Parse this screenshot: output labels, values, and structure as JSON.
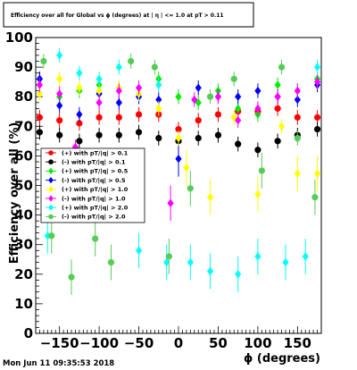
{
  "chart_data": {
    "type": "scatter",
    "title": "Efficiency over all for Global vs ϕ (degrees) at | η | <= 1.0 at pT > 0.11",
    "xlabel": "ϕ (degrees)",
    "ylabel": "Efficiency over all (%)",
    "xlim": [
      -180,
      180
    ],
    "ylim": [
      0,
      100
    ],
    "x_ticks": [
      -150,
      -100,
      -50,
      0,
      50,
      100,
      150
    ],
    "y_ticks": [
      0,
      10,
      20,
      30,
      40,
      50,
      60,
      70,
      80,
      90,
      100
    ],
    "x_tick_labels": [
      "−150",
      "−100",
      "−50",
      "0",
      "50",
      "100",
      "150"
    ],
    "y_tick_labels": [
      "0",
      "10",
      "20",
      "30",
      "40",
      "50",
      "60",
      "70",
      "80",
      "90",
      "100"
    ],
    "grid": false,
    "legend_position": "left-middle",
    "timestamp": "Mon Jun 11 09:35:53 2018",
    "series": [
      {
        "name": "(+) with pT/|q| > 0.1",
        "color": "#ff0000",
        "marker": "circle",
        "points": [
          [
            -175,
            73
          ],
          [
            -150,
            72
          ],
          [
            -125,
            71
          ],
          [
            -100,
            73
          ],
          [
            -75,
            73
          ],
          [
            -50,
            74
          ],
          [
            -25,
            74
          ],
          [
            0,
            69
          ],
          [
            25,
            72
          ],
          [
            50,
            74
          ],
          [
            75,
            75
          ],
          [
            100,
            75
          ],
          [
            125,
            76
          ],
          [
            150,
            73
          ],
          [
            175,
            73
          ]
        ]
      },
      {
        "name": "(-) with pT/|q| > 0.1",
        "color": "#000000",
        "marker": "circle",
        "points": [
          [
            -175,
            68
          ],
          [
            -150,
            67
          ],
          [
            -125,
            65
          ],
          [
            -100,
            67
          ],
          [
            -75,
            67
          ],
          [
            -50,
            68
          ],
          [
            -25,
            66
          ],
          [
            0,
            65
          ],
          [
            25,
            66
          ],
          [
            50,
            67
          ],
          [
            75,
            64
          ],
          [
            100,
            62
          ],
          [
            125,
            65
          ],
          [
            150,
            67
          ],
          [
            175,
            69
          ]
        ]
      },
      {
        "name": "(+) with pT/|q| > 0.5",
        "color": "#00ee00",
        "marker": "diamond",
        "points": [
          [
            -175,
            86
          ],
          [
            -150,
            80
          ],
          [
            -125,
            82
          ],
          [
            -100,
            84
          ],
          [
            -75,
            83
          ],
          [
            -50,
            80
          ],
          [
            -25,
            86
          ],
          [
            0,
            80
          ],
          [
            25,
            78
          ],
          [
            50,
            82
          ],
          [
            75,
            76
          ],
          [
            100,
            74
          ],
          [
            125,
            84
          ],
          [
            150,
            82
          ],
          [
            175,
            86
          ]
        ]
      },
      {
        "name": "(-) with pT/|q| > 0.5",
        "color": "#0000ff",
        "marker": "diamond",
        "points": [
          [
            -175,
            86
          ],
          [
            -150,
            77
          ],
          [
            -125,
            74
          ],
          [
            -100,
            81
          ],
          [
            -75,
            78
          ],
          [
            -50,
            80
          ],
          [
            -25,
            79
          ],
          [
            0,
            59
          ],
          [
            25,
            83
          ],
          [
            50,
            80
          ],
          [
            75,
            80
          ],
          [
            100,
            82
          ],
          [
            125,
            80
          ],
          [
            150,
            79
          ],
          [
            175,
            84
          ]
        ]
      },
      {
        "name": "(+) with pT/|q| > 1.0",
        "color": "#ffff00",
        "marker": "diamond",
        "points": [
          [
            -175,
            81
          ],
          [
            -150,
            86
          ],
          [
            -125,
            83
          ],
          [
            -100,
            82
          ],
          [
            -75,
            83
          ],
          [
            -50,
            81
          ],
          [
            -25,
            76
          ],
          [
            0,
            66
          ],
          [
            10,
            56
          ],
          [
            40,
            46
          ],
          [
            70,
            73
          ],
          [
            100,
            47
          ],
          [
            130,
            70
          ],
          [
            150,
            54
          ],
          [
            175,
            54
          ]
        ]
      },
      {
        "name": "(-) with pT/|q| > 1.0",
        "color": "#ff00ff",
        "marker": "diamond",
        "points": [
          [
            -175,
            84
          ],
          [
            -150,
            81
          ],
          [
            -130,
            63
          ],
          [
            -100,
            78
          ],
          [
            -75,
            82
          ],
          [
            -50,
            83
          ],
          [
            -10,
            44
          ],
          [
            20,
            79
          ],
          [
            50,
            80
          ],
          [
            75,
            72
          ],
          [
            100,
            76
          ],
          [
            125,
            80
          ],
          [
            150,
            82
          ],
          [
            175,
            85
          ]
        ]
      },
      {
        "name": "(+) with pT/|q| > 2.0",
        "color": "#00ffff",
        "marker": "diamond",
        "points": [
          [
            -165,
            33
          ],
          [
            -150,
            94
          ],
          [
            -125,
            88
          ],
          [
            -100,
            86
          ],
          [
            -75,
            90
          ],
          [
            -50,
            28
          ],
          [
            -25,
            84
          ],
          [
            -15,
            24
          ],
          [
            15,
            24
          ],
          [
            40,
            21
          ],
          [
            75,
            20
          ],
          [
            100,
            26
          ],
          [
            135,
            24
          ],
          [
            160,
            26
          ],
          [
            175,
            90
          ]
        ]
      },
      {
        "name": "(-) with pT/|q| > 2.0",
        "color": "#55cc55",
        "marker": "circle",
        "points": [
          [
            -170,
            92
          ],
          [
            -160,
            33
          ],
          [
            -135,
            19
          ],
          [
            -105,
            32
          ],
          [
            -85,
            24
          ],
          [
            -60,
            92
          ],
          [
            -30,
            90
          ],
          [
            -12,
            26
          ],
          [
            15,
            49
          ],
          [
            40,
            80
          ],
          [
            70,
            86
          ],
          [
            105,
            55
          ],
          [
            130,
            90
          ],
          [
            150,
            66
          ],
          [
            172,
            46
          ]
        ]
      }
    ]
  }
}
